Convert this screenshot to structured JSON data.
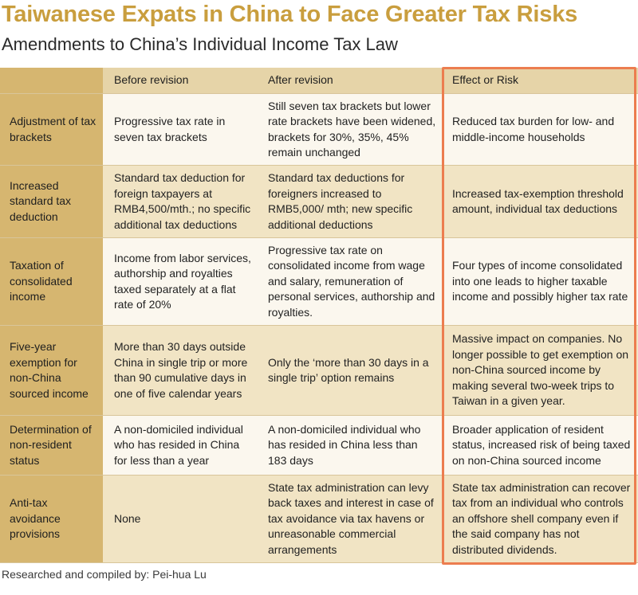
{
  "title": "Taiwanese Expats in China to Face Greater Tax Risks",
  "subtitle": "Amendments to China’s Individual Income Tax Law",
  "table": {
    "headers": [
      "",
      "Before revision",
      "After revision",
      "Effect or Risk"
    ],
    "rows": [
      {
        "label": "Adjustment of tax brackets",
        "before": "Progressive tax rate in seven tax brackets",
        "after": "Still seven tax brackets but lower rate brackets have been widened, brackets for 30%, 35%, 45% remain unchanged",
        "effect": "Reduced tax burden for low- and middle-income households"
      },
      {
        "label": "Increased standard tax deduction",
        "before": "Standard tax deduction for foreign taxpayers at RMB4,500/mth.; no specific additional tax deductions",
        "after": "Standard tax deductions for foreigners increased to RMB5,000/ mth; new specific additional deductions",
        "effect": "Increased tax-exemption threshold amount, individual tax deductions"
      },
      {
        "label": "Taxation of consolidated income",
        "before": "Income from labor services, authorship and royalties taxed separately at a flat rate of 20%",
        "after": "Progressive tax rate on consolidated income from wage and salary, remuneration of personal services, authorship and royalties.",
        "effect": "Four types of income consolidated into one leads to higher taxable income and possibly higher tax rate"
      },
      {
        "label": "Five-year exemption for non-China sourced income",
        "before": "More than 30 days outside China in single trip or more than 90 cumulative days in one of five calendar years",
        "after": "Only the ‘more than 30 days in a single trip’ option remains",
        "effect": "Massive impact on companies. No longer possible to get exemption on non-China sourced income by making several two-week trips to Taiwan in a given year."
      },
      {
        "label": "Determination of non-resident status",
        "before": "A non-domiciled individual who has resided in China for less than a year",
        "after": "A non-domiciled individual who has resided in China less than 183 days",
        "effect": "Broader application of resident status, increased risk of being taxed on non-China sourced income"
      },
      {
        "label": "Anti-tax avoidance provisions",
        "before": "None",
        "after": "State tax administration can levy back taxes and interest in case of tax avoidance via tax havens or unreasonable commercial arrangements",
        "effect": "State tax administration can recover tax from an individual who controls an offshore shell company even if the said company has not distributed dividends."
      }
    ]
  },
  "credit": "Researched and compiled by: Pei-hua Lu",
  "colors": {
    "title": "#c99e3e",
    "row_header_bg": "#d6b670",
    "header_bg": "#e6d4a8",
    "highlight_border": "#ec7d4f"
  }
}
